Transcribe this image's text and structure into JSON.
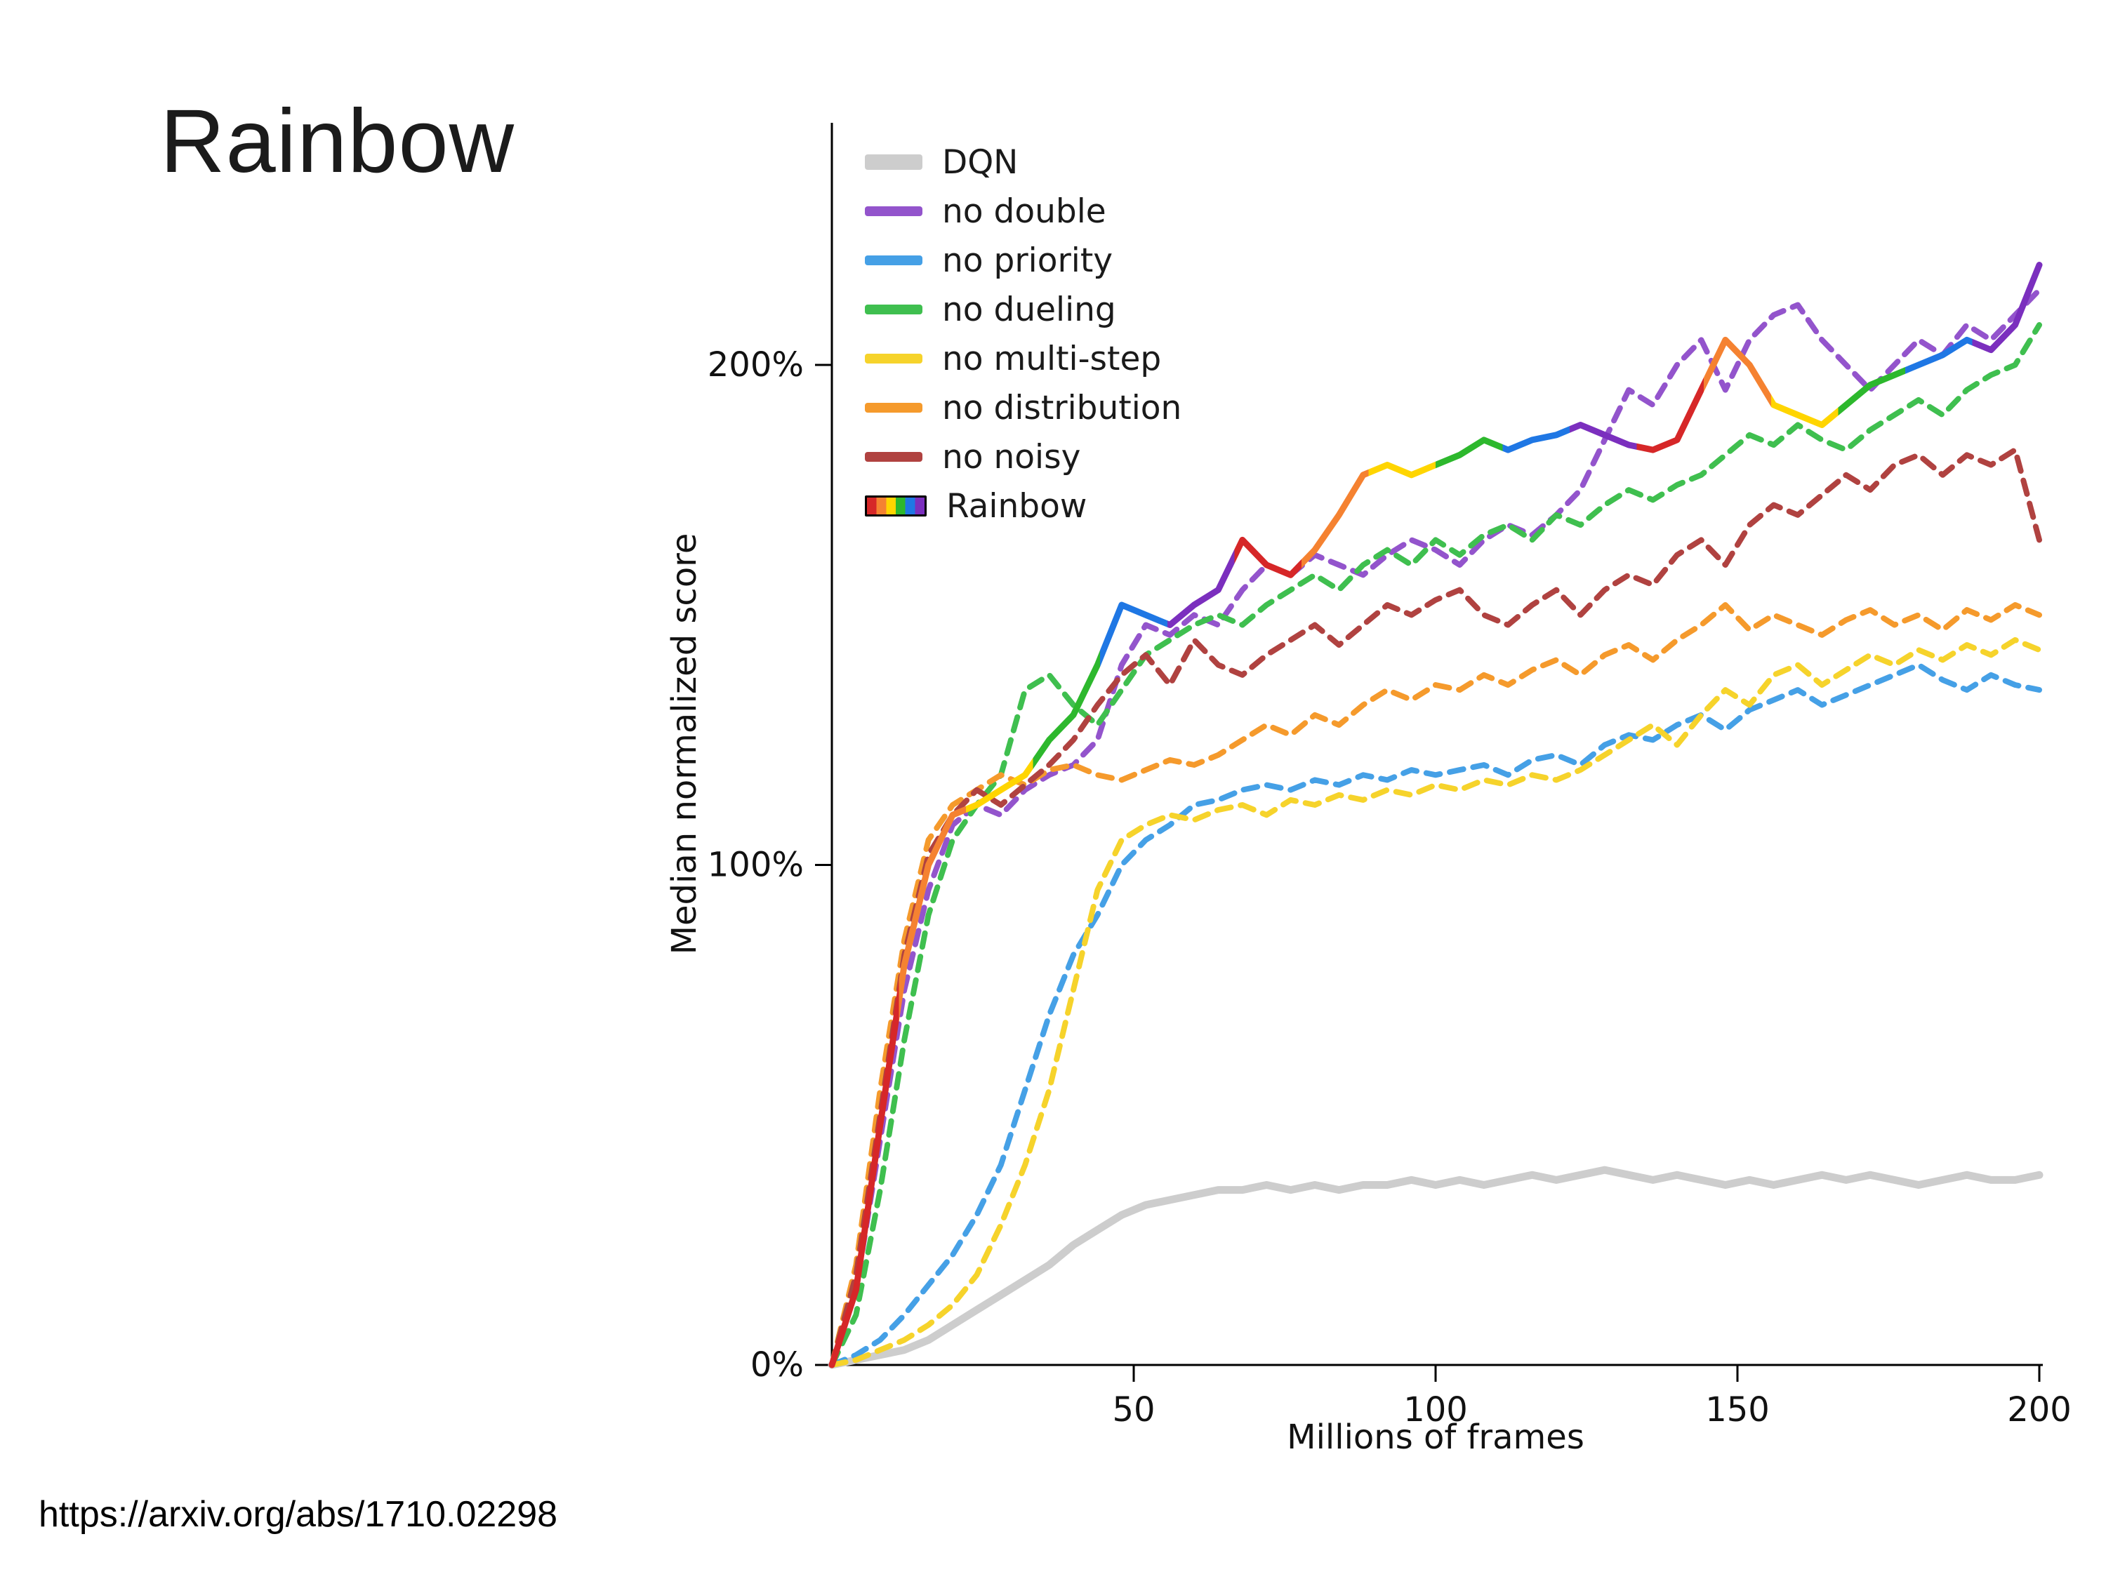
{
  "slide": {
    "title": "Rainbow",
    "source_url": "https://arxiv.org/abs/1710.02298"
  },
  "chart_data": {
    "type": "line",
    "title": "",
    "xlabel": "Millions of frames",
    "ylabel": "Median normalized score",
    "xlim": [
      0,
      200
    ],
    "ylim_percent": [
      0,
      250
    ],
    "grid": false,
    "legend_position": "upper left",
    "x_ticks": [
      {
        "value": 50,
        "label": "50"
      },
      {
        "value": 100,
        "label": "100"
      },
      {
        "value": 150,
        "label": "150"
      },
      {
        "value": 200,
        "label": "200"
      }
    ],
    "y_ticks": [
      {
        "value": 0,
        "label": "0%"
      },
      {
        "value": 100,
        "label": "100%"
      },
      {
        "value": 200,
        "label": "200%"
      }
    ],
    "x": [
      0,
      4,
      8,
      12,
      16,
      20,
      24,
      28,
      32,
      36,
      40,
      44,
      48,
      52,
      56,
      60,
      64,
      68,
      72,
      76,
      80,
      84,
      88,
      92,
      96,
      100,
      104,
      108,
      112,
      116,
      120,
      124,
      128,
      132,
      136,
      140,
      144,
      148,
      152,
      156,
      160,
      164,
      168,
      172,
      176,
      180,
      184,
      188,
      192,
      196,
      200
    ],
    "series": [
      {
        "name": "DQN",
        "color": "#cdcdcd",
        "style": "solid",
        "width": 11,
        "values": [
          0,
          1,
          2,
          3,
          5,
          8,
          11,
          14,
          17,
          20,
          24,
          27,
          30,
          32,
          33,
          34,
          35,
          35,
          36,
          35,
          36,
          35,
          36,
          36,
          37,
          36,
          37,
          36,
          37,
          38,
          37,
          38,
          39,
          38,
          37,
          38,
          37,
          36,
          37,
          36,
          37,
          38,
          37,
          38,
          37,
          36,
          37,
          38,
          37,
          37,
          38
        ]
      },
      {
        "name": "no double",
        "color": "#9354cc",
        "style": "dashed",
        "width": 8,
        "values": [
          0,
          15,
          45,
          75,
          95,
          108,
          112,
          110,
          115,
          118,
          120,
          125,
          140,
          148,
          146,
          150,
          148,
          155,
          160,
          158,
          162,
          160,
          158,
          162,
          165,
          163,
          160,
          165,
          168,
          166,
          170,
          175,
          185,
          195,
          192,
          200,
          205,
          195,
          205,
          210,
          212,
          205,
          200,
          195,
          200,
          205,
          202,
          208,
          205,
          210,
          215
        ]
      },
      {
        "name": "no priority",
        "color": "#45a0e6",
        "style": "dashed",
        "width": 8,
        "values": [
          0,
          2,
          5,
          10,
          16,
          22,
          30,
          40,
          55,
          70,
          82,
          90,
          100,
          105,
          108,
          112,
          113,
          115,
          116,
          115,
          117,
          116,
          118,
          117,
          119,
          118,
          119,
          120,
          118,
          121,
          122,
          120,
          124,
          126,
          125,
          128,
          130,
          127,
          131,
          133,
          135,
          132,
          134,
          136,
          138,
          140,
          137,
          135,
          138,
          136,
          135
        ]
      },
      {
        "name": "no dueling",
        "color": "#3fbf4f",
        "style": "dashed",
        "width": 8,
        "values": [
          0,
          10,
          35,
          65,
          90,
          105,
          112,
          118,
          135,
          138,
          132,
          128,
          135,
          142,
          145,
          148,
          150,
          148,
          152,
          155,
          158,
          155,
          160,
          163,
          160,
          165,
          162,
          166,
          168,
          165,
          170,
          168,
          172,
          175,
          173,
          176,
          178,
          182,
          186,
          184,
          188,
          185,
          183,
          187,
          190,
          193,
          190,
          195,
          198,
          200,
          208
        ]
      },
      {
        "name": "no multi-step",
        "color": "#f6d32b",
        "style": "dashed",
        "width": 8,
        "values": [
          0,
          1,
          3,
          5,
          8,
          12,
          18,
          28,
          40,
          55,
          75,
          95,
          105,
          108,
          110,
          109,
          111,
          112,
          110,
          113,
          112,
          114,
          113,
          115,
          114,
          116,
          115,
          117,
          116,
          118,
          117,
          119,
          122,
          125,
          128,
          124,
          130,
          135,
          132,
          138,
          140,
          136,
          139,
          142,
          140,
          143,
          141,
          144,
          142,
          145,
          143
        ]
      },
      {
        "name": "no distribution",
        "color": "#f59a2c",
        "style": "dashed",
        "width": 8,
        "values": [
          0,
          20,
          55,
          85,
          105,
          112,
          115,
          118,
          116,
          119,
          120,
          118,
          117,
          119,
          121,
          120,
          122,
          125,
          128,
          126,
          130,
          128,
          132,
          135,
          133,
          136,
          135,
          138,
          136,
          139,
          141,
          138,
          142,
          144,
          141,
          145,
          148,
          152,
          147,
          150,
          148,
          146,
          149,
          151,
          148,
          150,
          147,
          151,
          149,
          152,
          150
        ]
      },
      {
        "name": "no noisy",
        "color": "#b04240",
        "style": "dashed",
        "width": 8,
        "values": [
          0,
          18,
          50,
          82,
          102,
          110,
          115,
          112,
          116,
          120,
          125,
          132,
          138,
          142,
          136,
          145,
          140,
          138,
          142,
          145,
          148,
          144,
          148,
          152,
          150,
          153,
          155,
          150,
          148,
          152,
          155,
          150,
          155,
          158,
          156,
          162,
          165,
          160,
          168,
          172,
          170,
          174,
          178,
          175,
          180,
          182,
          178,
          182,
          180,
          183,
          165
        ]
      },
      {
        "name": "Rainbow",
        "color": "rainbow",
        "style": "solid",
        "width": 9,
        "palette": [
          "#d62728",
          "#f58231",
          "#ffd500",
          "#2db82d",
          "#1f77e4",
          "#7b2fbe"
        ],
        "values": [
          0,
          15,
          48,
          80,
          100,
          110,
          112,
          115,
          118,
          125,
          130,
          140,
          152,
          150,
          148,
          152,
          155,
          165,
          160,
          158,
          163,
          170,
          178,
          180,
          178,
          180,
          182,
          185,
          183,
          185,
          186,
          188,
          186,
          184,
          183,
          185,
          195,
          205,
          200,
          192,
          190,
          188,
          192,
          196,
          198,
          200,
          202,
          205,
          203,
          208,
          220
        ]
      }
    ]
  }
}
